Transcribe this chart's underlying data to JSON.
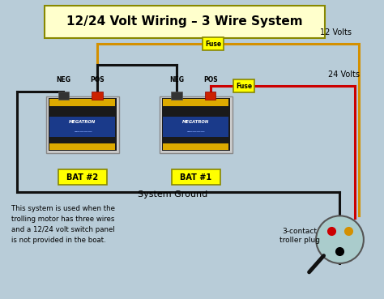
{
  "title": "12/24 Volt Wiring – 3 Wire System",
  "bg_color": "#b8ccd8",
  "title_box_color": "#ffffcc",
  "title_fontsize": 11,
  "battery1_label": "BAT #1",
  "battery2_label": "BAT #2",
  "battery_label_bg": "#ffff00",
  "wire_black": "#111111",
  "wire_yellow": "#d49000",
  "wire_red": "#cc0000",
  "fuse_bg": "#ffff00",
  "system_ground_text": "System Ground",
  "troller_text": "3-contact\ntroller plug",
  "desc_text": "This system is used when the\ntrolling motor has three wires\nand a 12/24 volt switch panel\nis not provided in the boat.",
  "volts12_text": "12 Volts",
  "volts24_text": "24 Volts",
  "neg_text": "NEG",
  "pos_text": "POS",
  "fuse_text": "Fuse",
  "xlim": [
    0,
    10
  ],
  "ylim": [
    0,
    7.8
  ]
}
